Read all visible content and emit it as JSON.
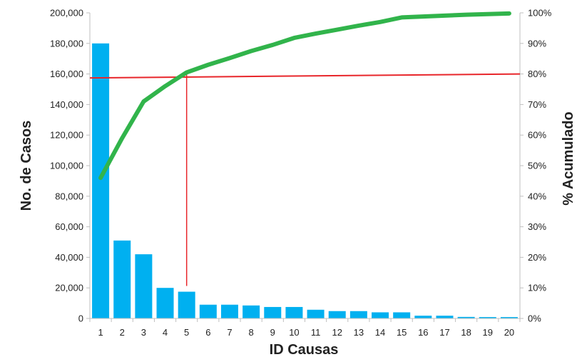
{
  "chart_data": {
    "type": "bar",
    "title": "",
    "xlabel": "ID Causas",
    "ylabel": "No. de Casos",
    "y2label": "% Acumulado",
    "categories": [
      "1",
      "2",
      "3",
      "4",
      "5",
      "6",
      "7",
      "8",
      "9",
      "10",
      "11",
      "12",
      "13",
      "14",
      "15",
      "16",
      "17",
      "18",
      "19",
      "20"
    ],
    "series": [
      {
        "type": "bar",
        "axis": "left",
        "values": [
          180000,
          51000,
          42000,
          20000,
          17500,
          9000,
          9000,
          8500,
          7500,
          7500,
          5700,
          4800,
          4800,
          4000,
          4000,
          1800,
          1800,
          1000,
          900,
          900
        ]
      },
      {
        "type": "line",
        "axis": "right",
        "values": [
          46,
          59,
          71,
          76,
          80.5,
          83,
          85.2,
          87.5,
          89.5,
          91.8,
          93.2,
          94.5,
          95.8,
          97,
          98.5,
          98.8,
          99.1,
          99.4,
          99.6,
          99.8
        ]
      }
    ],
    "reference_lines": [
      {
        "axis": "right",
        "from": 78.7,
        "to": 80,
        "color": "#e8262b"
      },
      {
        "x": "5",
        "y2_to": 80,
        "color": "#e8262b"
      }
    ],
    "ylim": [
      0,
      200000
    ],
    "yticks": [
      "0",
      "20,000",
      "40,000",
      "60,000",
      "80,000",
      "100,000",
      "120,000",
      "140,000",
      "160,000",
      "180,000",
      "200,000"
    ],
    "y2lim": [
      0,
      100
    ],
    "y2ticks": [
      "0%",
      "10%",
      "20%",
      "30%",
      "40%",
      "50%",
      "60%",
      "70%",
      "80%",
      "90%",
      "100%"
    ],
    "grid": false,
    "legend": "none",
    "colors": {
      "bar": "#00b0f0",
      "line": "#31b44b",
      "ref": "#e8262b",
      "axis": "#bfbfbf"
    }
  }
}
